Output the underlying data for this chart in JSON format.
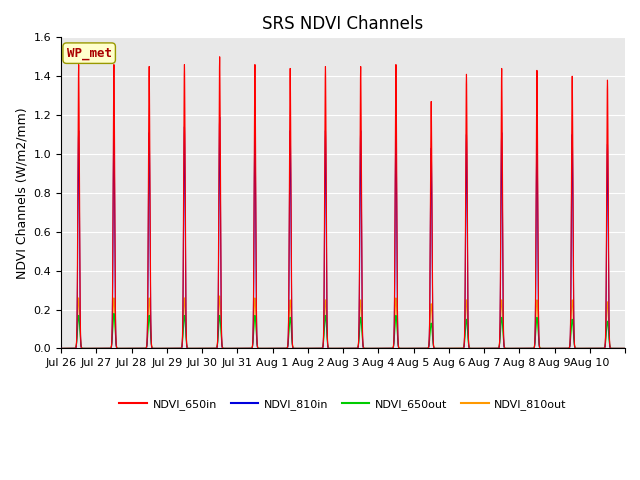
{
  "title": "SRS NDVI Channels",
  "ylabel": "NDVI Channels (W/m2/mm)",
  "xlabel": "",
  "ylim": [
    0.0,
    1.6
  ],
  "yticks": [
    0.0,
    0.2,
    0.4,
    0.6,
    0.8,
    1.0,
    1.2,
    1.4,
    1.6
  ],
  "bg_color": "#e8e8e8",
  "site_label": "WP_met",
  "site_label_color": "#aa0000",
  "site_label_bg": "#ffffcc",
  "line_colors": {
    "NDVI_650in": "#ff0000",
    "NDVI_810in": "#0000dd",
    "NDVI_650out": "#00cc00",
    "NDVI_810out": "#ff9900"
  },
  "legend_labels": [
    "NDVI_650in",
    "NDVI_810in",
    "NDVI_650out",
    "NDVI_810out"
  ],
  "num_cycles": 16,
  "peaks_650in": [
    1.46,
    1.46,
    1.45,
    1.46,
    1.5,
    1.46,
    1.44,
    1.45,
    1.45,
    1.46,
    1.27,
    1.41,
    1.44,
    1.43,
    1.4,
    1.38
  ],
  "peaks_810in": [
    1.12,
    1.13,
    1.11,
    1.14,
    1.19,
    1.14,
    1.12,
    1.12,
    1.12,
    1.13,
    1.03,
    1.1,
    1.11,
    1.1,
    1.1,
    1.05
  ],
  "peaks_650out": [
    0.17,
    0.18,
    0.17,
    0.17,
    0.17,
    0.17,
    0.16,
    0.17,
    0.16,
    0.17,
    0.13,
    0.15,
    0.16,
    0.16,
    0.15,
    0.14
  ],
  "peaks_810out": [
    0.26,
    0.26,
    0.26,
    0.26,
    0.27,
    0.26,
    0.25,
    0.25,
    0.25,
    0.26,
    0.23,
    0.25,
    0.25,
    0.25,
    0.25,
    0.24
  ],
  "x_tick_labels": [
    "Jul 26",
    "Jul 27",
    "Jul 28",
    "Jul 29",
    "Jul 30",
    "Jul 31",
    "Aug 1",
    "Aug 2",
    "Aug 3",
    "Aug 4",
    "Aug 5",
    "Aug 6",
    "Aug 7",
    "Aug 8",
    "Aug 9",
    "Aug 10"
  ],
  "title_fontsize": 12,
  "label_fontsize": 9,
  "tick_fontsize": 8,
  "figsize": [
    6.4,
    4.8
  ],
  "dpi": 100
}
